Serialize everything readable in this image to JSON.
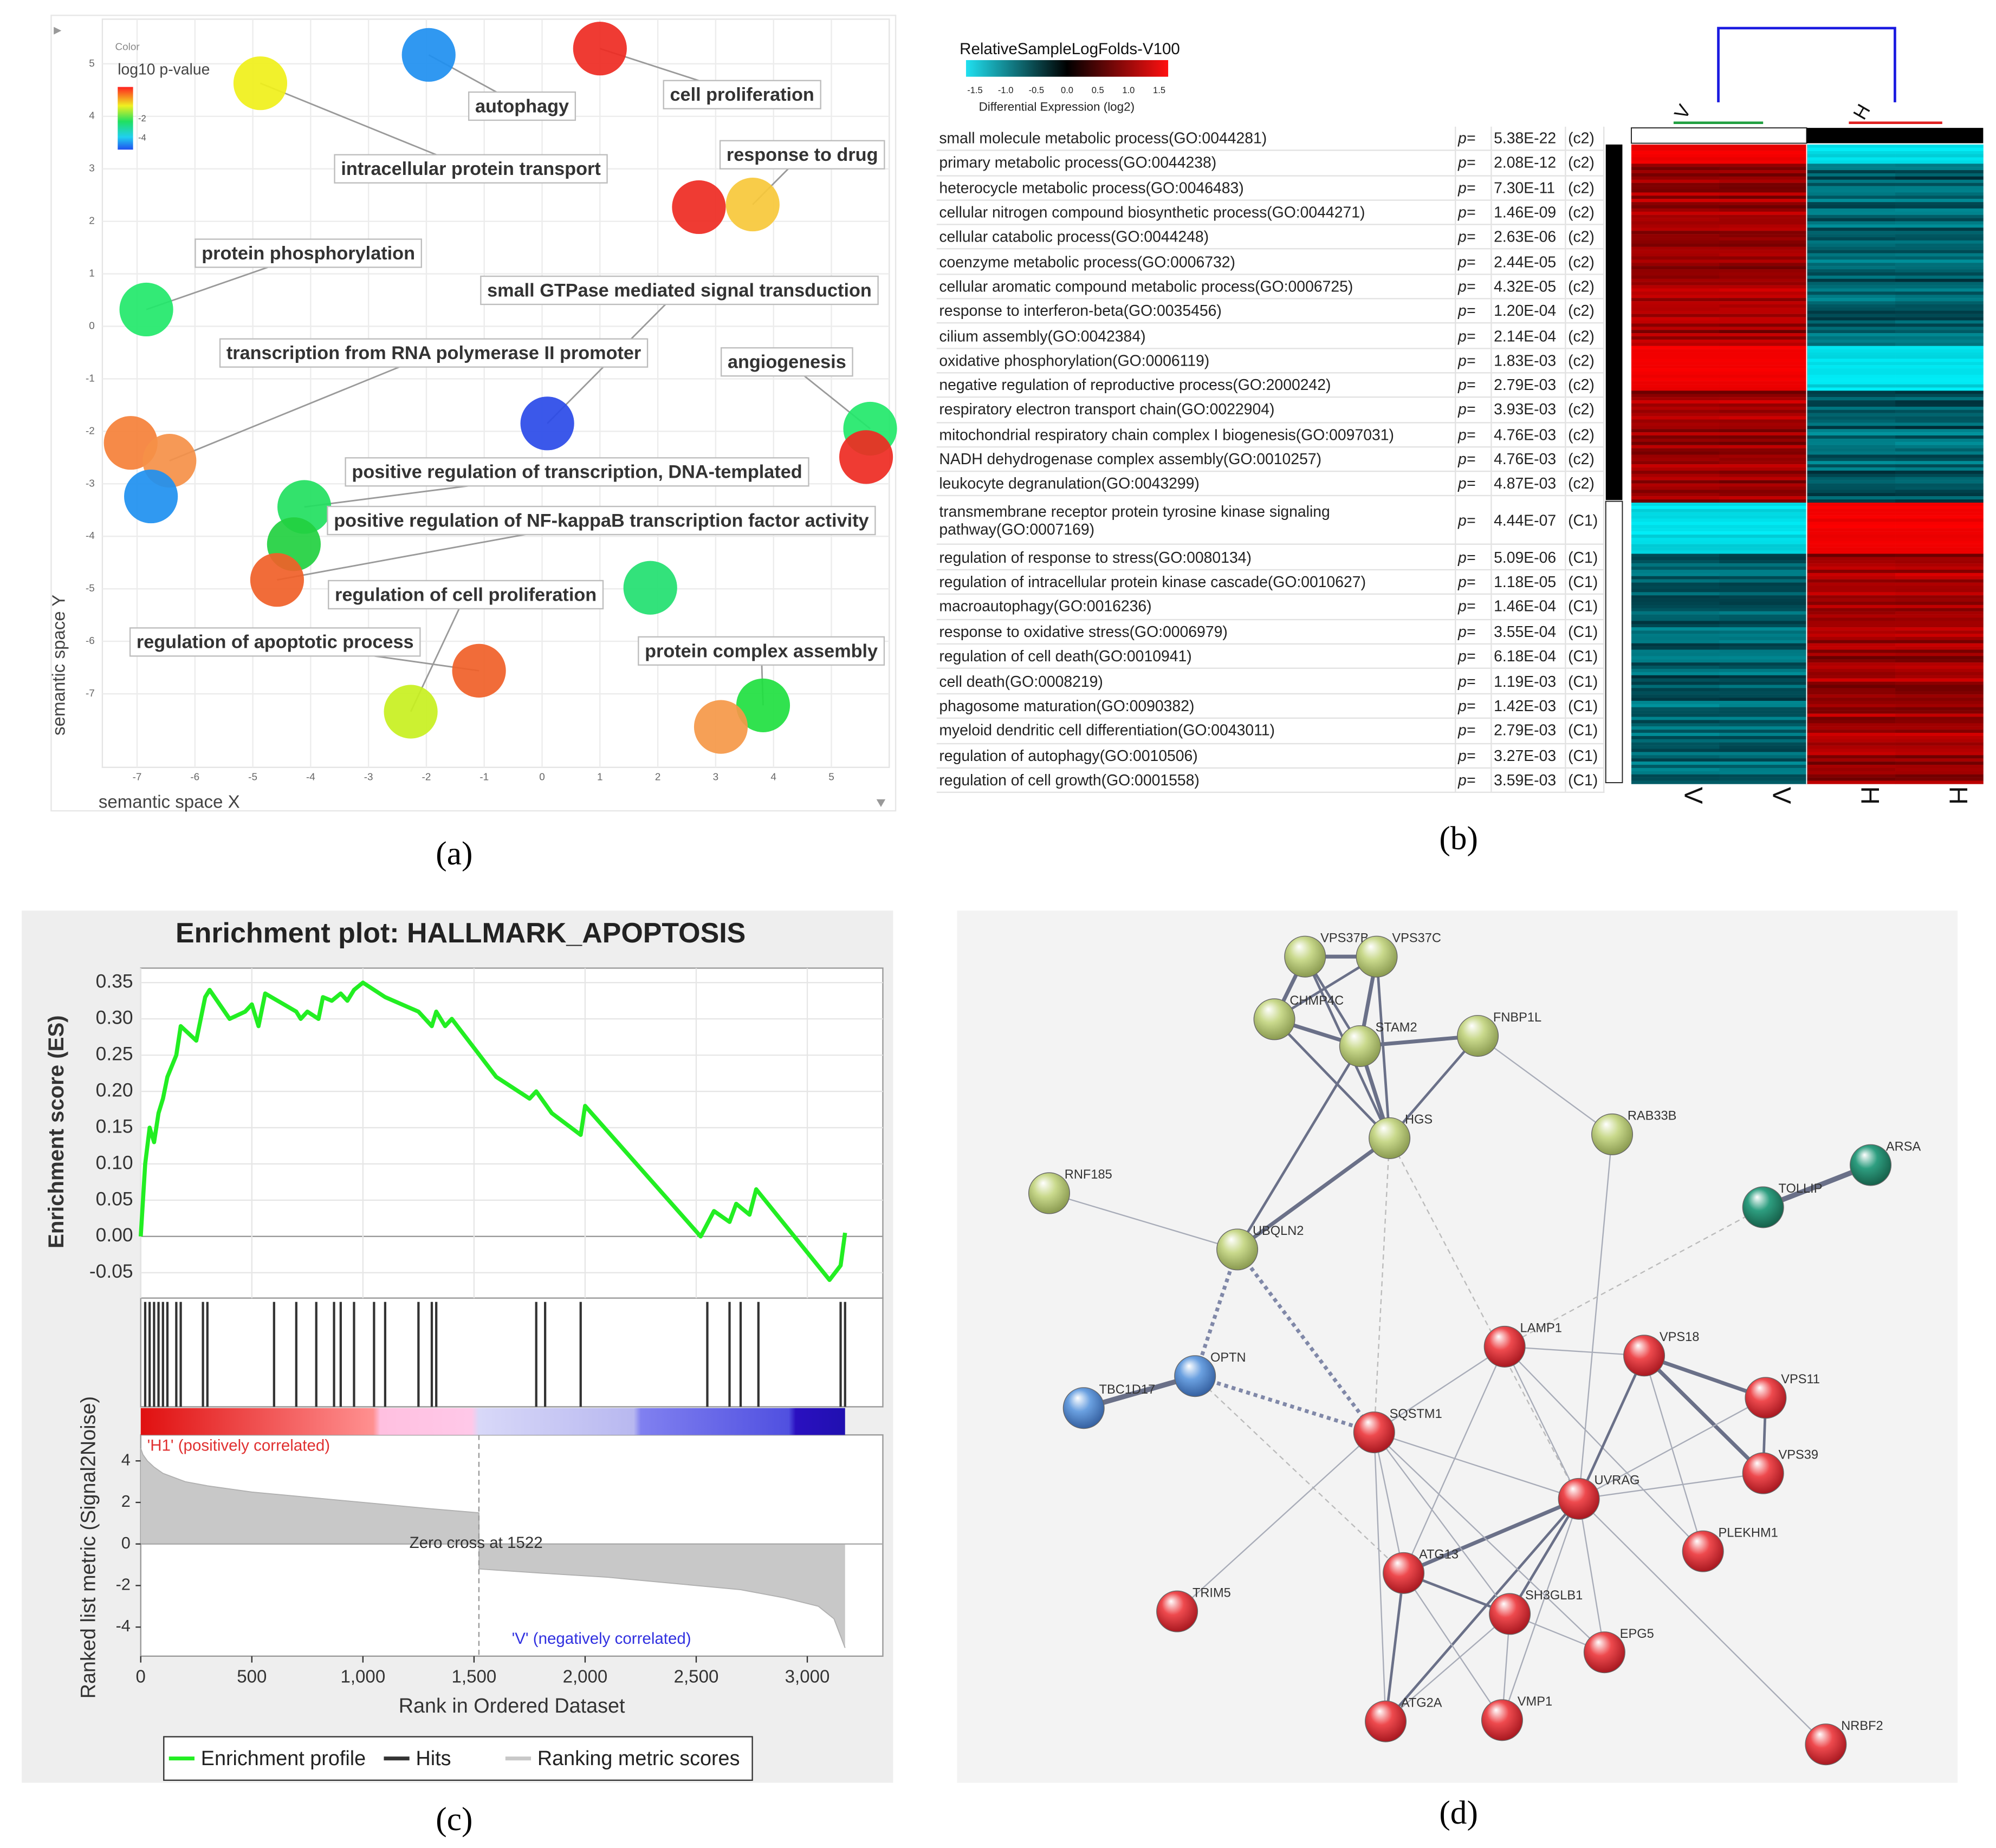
{
  "panel_labels": [
    "(a)",
    "(b)",
    "(c)",
    "(d)"
  ],
  "chart_data": [
    {
      "type": "scatter",
      "xlabel": "semantic space X",
      "ylabel": "semantic space Y",
      "xlim": [
        -7.6,
        6.0
      ],
      "ylim": [
        -8.4,
        5.85
      ],
      "xticks": [
        -7,
        -6,
        -5,
        -4,
        -3,
        -2,
        -1,
        0,
        1,
        2,
        3,
        4,
        5
      ],
      "yticks": [
        -7,
        -6,
        -5,
        -4,
        -3,
        -2,
        -1,
        0,
        1,
        2,
        3,
        4,
        5
      ],
      "grid": true,
      "colorbar": {
        "title": "Color",
        "label": "log10 p-value",
        "ticks": [
          -2,
          -4
        ]
      },
      "x": [
        -4.87,
        -1.96,
        1.0,
        2.71,
        3.64,
        -6.84,
        0.09,
        5.67,
        5.6,
        -7.11,
        -6.44,
        -6.76,
        -4.11,
        -4.29,
        -4.58,
        1.87,
        -1.09,
        -2.27,
        3.82,
        3.09
      ],
      "y": [
        4.63,
        5.17,
        5.29,
        2.27,
        2.32,
        0.32,
        -1.85,
        -1.95,
        -2.49,
        -2.22,
        -2.56,
        -3.24,
        -3.44,
        -4.15,
        -4.83,
        -4.98,
        -6.56,
        -7.34,
        -7.22,
        -7.63
      ],
      "labels": [
        "intracellular protein transport",
        "autophagy",
        "cell proliferation",
        null,
        "response to drug",
        "protein phosphorylation",
        "small GTPase mediated signal transduction",
        "angiogenesis",
        null,
        null,
        "transcription from RNA polymerase II promoter",
        null,
        "positive regulation of transcription, DNA-templated",
        null,
        "positive regulation of NF-kappaB transcription factor activity",
        null,
        "regulation of apoptotic process",
        "regulation of cell proliferation",
        "protein complex assembly",
        null
      ],
      "colors": [
        "#f0f01a",
        "#1e8ff0",
        "#ee2a22",
        "#ee2a22",
        "#f7c83a",
        "#22e86a",
        "#2a4ae8",
        "#22e86a",
        "#ee2a22",
        "#f58038",
        "#f59048",
        "#1e90f0",
        "#22e060",
        "#22d040",
        "#f06028",
        "#22e070",
        "#f06028",
        "#c8f020",
        "#20e040",
        "#f59848"
      ]
    },
    {
      "type": "line",
      "title": "Enrichment plot: HALLMARK_APOPTOSIS",
      "xlabel": "Rank in Ordered Dataset",
      "ylabel": "Enrichment score (ES)",
      "y2label": "Ranked list metric (Signal2Noise)",
      "xlim": [
        0,
        3340
      ],
      "ylim": [
        -0.085,
        0.37
      ],
      "y2lim": [
        -5.4,
        5.25
      ],
      "xticks": [
        0,
        500,
        {
          "value": 1000,
          "label": "1,000"
        },
        {
          "value": 1500,
          "label": "1,500"
        },
        {
          "value": 2000,
          "label": "2,000"
        },
        {
          "value": 2500,
          "label": "2,500"
        },
        {
          "value": 3000,
          "label": "3,000"
        }
      ],
      "yticks": [
        0.35,
        {
          "value": 0.3,
          "label": "0.30"
        },
        0.25,
        {
          "value": 0.2,
          "label": "0.20"
        },
        0.15,
        {
          "value": 0.1,
          "label": "0.10"
        },
        0.05,
        {
          "value": 0,
          "label": "0.00"
        },
        -0.05
      ],
      "y2ticks": [
        4,
        2,
        0,
        -2,
        -4
      ],
      "grid": true,
      "annotations": [
        "'H1' (positively correlated)",
        "Zero cross at 1522",
        "'V' (negatively correlated)"
      ],
      "series": [
        {
          "name": "Enrichment profile",
          "color": "#22ee22",
          "x": [
            0,
            20,
            40,
            60,
            80,
            100,
            120,
            160,
            180,
            250,
            290,
            310,
            400,
            470,
            500,
            530,
            560,
            700,
            720,
            750,
            800,
            820,
            860,
            900,
            930,
            960,
            1000,
            1100,
            1250,
            1310,
            1330,
            1370,
            1400,
            1600,
            1750,
            1780,
            1850,
            1980,
            2000,
            2520,
            2580,
            2650,
            2680,
            2740,
            2770,
            3100,
            3150,
            3170
          ],
          "values": [
            0,
            0.1,
            0.15,
            0.13,
            0.17,
            0.19,
            0.22,
            0.25,
            0.29,
            0.27,
            0.33,
            0.34,
            0.3,
            0.31,
            0.32,
            0.29,
            0.335,
            0.31,
            0.3,
            0.31,
            0.3,
            0.33,
            0.325,
            0.335,
            0.325,
            0.34,
            0.35,
            0.33,
            0.31,
            0.29,
            0.31,
            0.29,
            0.3,
            0.22,
            0.19,
            0.2,
            0.17,
            0.14,
            0.18,
            0.0,
            0.035,
            0.02,
            0.045,
            0.03,
            0.065,
            -0.06,
            -0.04,
            0.005
          ]
        },
        {
          "name": "Hits",
          "color": "#333333",
          "x": [
            20,
            40,
            60,
            80,
            100,
            120,
            160,
            180,
            280,
            300,
            600,
            700,
            790,
            870,
            900,
            960,
            1050,
            1100,
            1250,
            1310,
            1330,
            1780,
            1820,
            1980,
            2550,
            2650,
            2700,
            2780,
            3150,
            3170
          ]
        },
        {
          "name": "Ranking metric scores",
          "color": "#c8c8c8",
          "axis": "y2",
          "x": [
            0,
            10,
            30,
            60,
            100,
            200,
            300,
            500,
            700,
            1000,
            1300,
            1522,
            1523,
            1800,
            2100,
            2400,
            2700,
            2900,
            3050,
            3120,
            3170
          ],
          "values": [
            4.6,
            4.3,
            4.0,
            3.7,
            3.4,
            3.0,
            2.8,
            2.5,
            2.3,
            2.0,
            1.7,
            1.5,
            -1.2,
            -1.4,
            -1.6,
            -1.9,
            -2.2,
            -2.6,
            -3.0,
            -3.6,
            -5.0
          ]
        }
      ]
    }
  ],
  "heatmap_panel": {
    "title": "RelativeSampleLogFolds-V100",
    "colorbar_labels": [
      "-1.5",
      "-1.0",
      "-0.5",
      "0.0",
      "0.5",
      "1.0",
      "1.5"
    ],
    "colorbar_title": "Differential Expression (log2)",
    "group_labels": [
      "V",
      "H"
    ],
    "column_labels": [
      "V",
      "V",
      "H",
      "H"
    ],
    "rows": [
      [
        "small molecule metabolic process(GO:0044281)",
        "p=",
        "5.38E-22",
        "(c2)"
      ],
      [
        "primary metabolic process(GO:0044238)",
        "p=",
        "2.08E-12",
        "(c2)"
      ],
      [
        "heterocycle metabolic process(GO:0046483)",
        "p=",
        "7.30E-11",
        "(c2)"
      ],
      [
        "cellular nitrogen compound biosynthetic process(GO:0044271)",
        "p=",
        "1.46E-09",
        "(c2)"
      ],
      [
        "cellular catabolic process(GO:0044248)",
        "p=",
        "2.63E-06",
        "(c2)"
      ],
      [
        "coenzyme metabolic process(GO:0006732)",
        "p=",
        "2.44E-05",
        "(c2)"
      ],
      [
        "cellular aromatic compound metabolic process(GO:0006725)",
        "p=",
        "4.32E-05",
        "(c2)"
      ],
      [
        "response to interferon-beta(GO:0035456)",
        "p=",
        "1.20E-04",
        "(c2)"
      ],
      [
        "cilium assembly(GO:0042384)",
        "p=",
        "2.14E-04",
        "(c2)"
      ],
      [
        "oxidative phosphorylation(GO:0006119)",
        "p=",
        "1.83E-03",
        "(c2)"
      ],
      [
        "negative regulation of reproductive process(GO:2000242)",
        "p=",
        "2.79E-03",
        "(c2)"
      ],
      [
        "respiratory electron transport chain(GO:0022904)",
        "p=",
        "3.93E-03",
        "(c2)"
      ],
      [
        "mitochondrial respiratory chain complex I biogenesis(GO:0097031)",
        "p=",
        "4.76E-03",
        "(c2)"
      ],
      [
        "NADH dehydrogenase complex assembly(GO:0010257)",
        "p=",
        "4.76E-03",
        "(c2)"
      ],
      [
        "leukocyte degranulation(GO:0043299)",
        "p=",
        "4.87E-03",
        "(c2)"
      ],
      [
        "transmembrane receptor protein tyrosine kinase signaling pathway(GO:0007169)",
        "p=",
        "4.44E-07",
        "(C1)"
      ],
      [
        "regulation of response to stress(GO:0080134)",
        "p=",
        "5.09E-06",
        "(C1)"
      ],
      [
        "regulation of intracellular protein kinase cascade(GO:0010627)",
        "p=",
        "1.18E-05",
        "(C1)"
      ],
      [
        "macroautophagy(GO:0016236)",
        "p=",
        "1.46E-04",
        "(C1)"
      ],
      [
        "response to oxidative stress(GO:0006979)",
        "p=",
        "3.55E-04",
        "(C1)"
      ],
      [
        "regulation of cell death(GO:0010941)",
        "p=",
        "6.18E-04",
        "(C1)"
      ],
      [
        "cell death(GO:0008219)",
        "p=",
        "1.19E-03",
        "(C1)"
      ],
      [
        "phagosome maturation(GO:0090382)",
        "p=",
        "1.42E-03",
        "(C1)"
      ],
      [
        "myeloid dendritic cell differentiation(GO:0043011)",
        "p=",
        "2.79E-03",
        "(C1)"
      ],
      [
        "regulation of autophagy(GO:0010506)",
        "p=",
        "3.27E-03",
        "(C1)"
      ],
      [
        "regulation of cell growth(GO:0001558)",
        "p=",
        "3.59E-03",
        "(C1)"
      ]
    ]
  },
  "network": {
    "nodes": [
      "VPS37B",
      "VPS37C",
      "CHMP4C",
      "STAM2",
      "FNBP1L",
      "HGS",
      "RAB33B",
      "RNF185",
      "UBQLN2",
      "ARSA",
      "TOLLIP",
      "OPTN",
      "TBC1D17",
      "LAMP1",
      "VPS18",
      "VPS11",
      "VPS39",
      "SQSTM1",
      "UVRAG",
      "PLEKHM1",
      "ATG13",
      "SH3GLB1",
      "TRIM5",
      "EPG5",
      "ATG2A",
      "VMP1",
      "NRBF2"
    ]
  }
}
